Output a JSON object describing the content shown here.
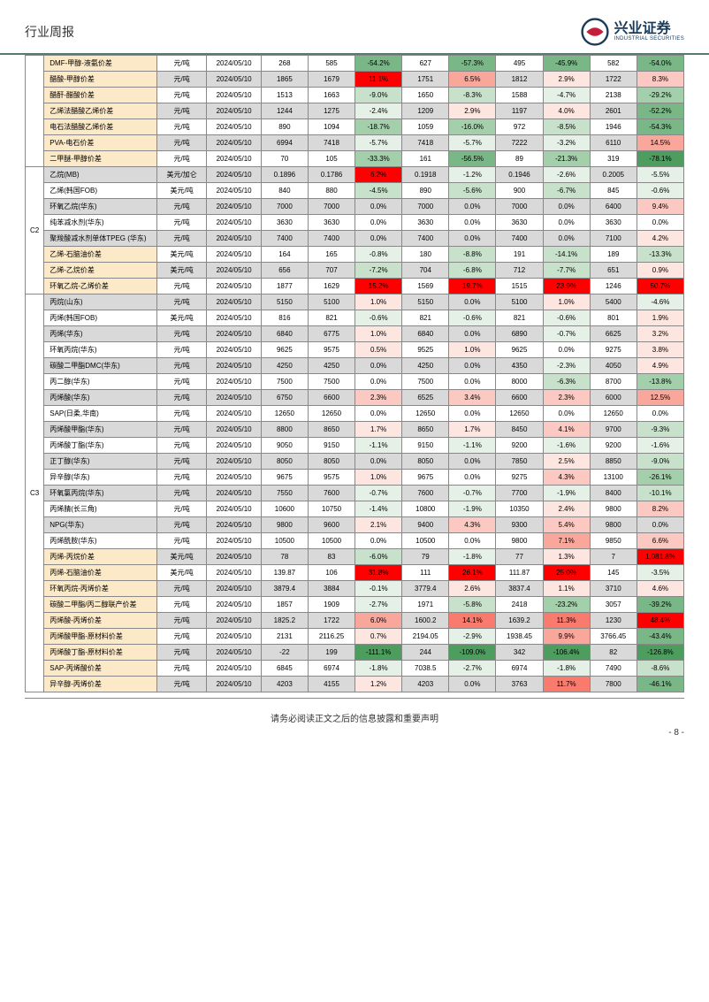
{
  "header_title": "行业周报",
  "logo": {
    "cn": "兴业证券",
    "en": "INDUSTRIAL SECURITIES"
  },
  "footer": "请务必阅读正文之后的信息披露和重要声明",
  "page": "- 8 -",
  "rot_label": "C3",
  "color_map": {
    "r5": "#ff0000",
    "r4": "#f97b6e",
    "r3": "#f9a79b",
    "r2": "#fbc9c1",
    "r1": "#fde5e0",
    "g5": "#4d9d5f",
    "g4": "#7ab787",
    "g3": "#a3cfab",
    "g2": "#c7e1cb",
    "g1": "#e5f0e7",
    "n": "transparent"
  },
  "groups": [
    {
      "rot": "",
      "rows": [
        {
          "hl": true,
          "grey": false,
          "name": "DMF-甲醇-液氨价差",
          "unit": "元/吨",
          "date": "2024/05/10",
          "v1": "268",
          "v2": "585",
          "p1": "-54.2%",
          "c1": "g4",
          "v3": "627",
          "p2": "-57.3%",
          "c2": "g4",
          "v4": "495",
          "p3": "-45.9%",
          "c3": "g4",
          "v5": "582",
          "p4": "-54.0%",
          "c4": "g4"
        },
        {
          "hl": true,
          "grey": true,
          "name": "醋酸-甲醇价差",
          "unit": "元/吨",
          "date": "2024/05/10",
          "v1": "1865",
          "v2": "1679",
          "p1": "11.1%",
          "c1": "r5",
          "v3": "1751",
          "p2": "6.5%",
          "c2": "r3",
          "v4": "1812",
          "p3": "2.9%",
          "c3": "r1",
          "v5": "1722",
          "p4": "8.3%",
          "c4": "r2"
        },
        {
          "hl": true,
          "grey": false,
          "name": "醋酐-醋酸价差",
          "unit": "元/吨",
          "date": "2024/05/10",
          "v1": "1513",
          "v2": "1663",
          "p1": "-9.0%",
          "c1": "g2",
          "v3": "1650",
          "p2": "-8.3%",
          "c2": "g2",
          "v4": "1588",
          "p3": "-4.7%",
          "c3": "g1",
          "v5": "2138",
          "p4": "-29.2%",
          "c4": "g3"
        },
        {
          "hl": true,
          "grey": true,
          "name": "乙烯法醋酸乙烯价差",
          "unit": "元/吨",
          "date": "2024/05/10",
          "v1": "1244",
          "v2": "1275",
          "p1": "-2.4%",
          "c1": "g1",
          "v3": "1209",
          "p2": "2.9%",
          "c2": "r1",
          "v4": "1197",
          "p3": "4.0%",
          "c3": "r1",
          "v5": "2601",
          "p4": "-52.2%",
          "c4": "g4"
        },
        {
          "hl": true,
          "grey": false,
          "name": "电石法醋酸乙烯价差",
          "unit": "元/吨",
          "date": "2024/05/10",
          "v1": "890",
          "v2": "1094",
          "p1": "-18.7%",
          "c1": "g3",
          "v3": "1059",
          "p2": "-16.0%",
          "c2": "g3",
          "v4": "972",
          "p3": "-8.5%",
          "c3": "g2",
          "v5": "1946",
          "p4": "-54.3%",
          "c4": "g4"
        },
        {
          "hl": true,
          "grey": true,
          "name": "PVA-电石价差",
          "unit": "元/吨",
          "date": "2024/05/10",
          "v1": "6994",
          "v2": "7418",
          "p1": "-5.7%",
          "c1": "g1",
          "v3": "7418",
          "p2": "-5.7%",
          "c2": "g1",
          "v4": "7222",
          "p3": "-3.2%",
          "c3": "g1",
          "v5": "6110",
          "p4": "14.5%",
          "c4": "r3"
        },
        {
          "hl": true,
          "grey": false,
          "name": "二甲醚-甲醇价差",
          "unit": "元/吨",
          "date": "2024/05/10",
          "v1": "70",
          "v2": "105",
          "p1": "-33.3%",
          "c1": "g3",
          "v3": "161",
          "p2": "-56.5%",
          "c2": "g4",
          "v4": "89",
          "p3": "-21.3%",
          "c3": "g3",
          "v5": "319",
          "p4": "-78.1%",
          "c4": "g5"
        }
      ]
    },
    {
      "rot": "C2",
      "rows": [
        {
          "hl": false,
          "grey": true,
          "name": "乙烷(MB)",
          "unit": "美元/加仑",
          "date": "2024/05/10",
          "v1": "0.1896",
          "v2": "0.1786",
          "p1": "6.2%",
          "c1": "r5",
          "v3": "0.1918",
          "p2": "-1.2%",
          "c2": "g1",
          "v4": "0.1946",
          "p3": "-2.6%",
          "c3": "g1",
          "v5": "0.2005",
          "p4": "-5.5%",
          "c4": "g1"
        },
        {
          "hl": false,
          "grey": false,
          "name": "乙烯(韩国FOB)",
          "unit": "美元/吨",
          "date": "2024/05/10",
          "v1": "840",
          "v2": "880",
          "p1": "-4.5%",
          "c1": "g2",
          "v3": "890",
          "p2": "-5.6%",
          "c2": "g2",
          "v4": "900",
          "p3": "-6.7%",
          "c3": "g2",
          "v5": "845",
          "p4": "-0.6%",
          "c4": "g1"
        },
        {
          "hl": false,
          "grey": true,
          "name": "环氧乙烷(华东)",
          "unit": "元/吨",
          "date": "2024/05/10",
          "v1": "7000",
          "v2": "7000",
          "p1": "0.0%",
          "c1": "n",
          "v3": "7000",
          "p2": "0.0%",
          "c2": "n",
          "v4": "7000",
          "p3": "0.0%",
          "c3": "n",
          "v5": "6400",
          "p4": "9.4%",
          "c4": "r2"
        },
        {
          "hl": false,
          "grey": false,
          "name": "纯苯减水剂(华东)",
          "unit": "元/吨",
          "date": "2024/05/10",
          "v1": "3630",
          "v2": "3630",
          "p1": "0.0%",
          "c1": "n",
          "v3": "3630",
          "p2": "0.0%",
          "c2": "n",
          "v4": "3630",
          "p3": "0.0%",
          "c3": "n",
          "v5": "3630",
          "p4": "0.0%",
          "c4": "n"
        },
        {
          "hl": false,
          "grey": true,
          "name": "聚羧酸减水剂单体TPEG (华东)",
          "unit": "元/吨",
          "date": "2024/05/10",
          "v1": "7400",
          "v2": "7400",
          "p1": "0.0%",
          "c1": "n",
          "v3": "7400",
          "p2": "0.0%",
          "c2": "n",
          "v4": "7400",
          "p3": "0.0%",
          "c3": "n",
          "v5": "7100",
          "p4": "4.2%",
          "c4": "r1"
        },
        {
          "hl": true,
          "grey": false,
          "name": "乙烯-石脑油价差",
          "unit": "美元/吨",
          "date": "2024/05/10",
          "v1": "164",
          "v2": "165",
          "p1": "-0.8%",
          "c1": "g1",
          "v3": "180",
          "p2": "-8.8%",
          "c2": "g2",
          "v4": "191",
          "p3": "-14.1%",
          "c3": "g2",
          "v5": "189",
          "p4": "-13.3%",
          "c4": "g2"
        },
        {
          "hl": true,
          "grey": true,
          "name": "乙烯-乙烷价差",
          "unit": "美元/吨",
          "date": "2024/05/10",
          "v1": "656",
          "v2": "707",
          "p1": "-7.2%",
          "c1": "g2",
          "v3": "704",
          "p2": "-6.8%",
          "c2": "g2",
          "v4": "712",
          "p3": "-7.7%",
          "c3": "g2",
          "v5": "651",
          "p4": "0.9%",
          "c4": "r1"
        },
        {
          "hl": true,
          "grey": false,
          "name": "环氧乙烷-乙烯价差",
          "unit": "元/吨",
          "date": "2024/05/10",
          "v1": "1877",
          "v2": "1629",
          "p1": "15.2%",
          "c1": "r5",
          "v3": "1569",
          "p2": "19.7%",
          "c2": "r5",
          "v4": "1515",
          "p3": "23.9%",
          "c3": "r5",
          "v5": "1246",
          "p4": "50.7%",
          "c4": "r5"
        }
      ]
    },
    {
      "rot": "C3",
      "rows": [
        {
          "hl": false,
          "grey": true,
          "name": "丙烷(山东)",
          "unit": "元/吨",
          "date": "2024/05/10",
          "v1": "5150",
          "v2": "5100",
          "p1": "1.0%",
          "c1": "r1",
          "v3": "5150",
          "p2": "0.0%",
          "c2": "n",
          "v4": "5100",
          "p3": "1.0%",
          "c3": "r1",
          "v5": "5400",
          "p4": "-4.6%",
          "c4": "g1"
        },
        {
          "hl": false,
          "grey": false,
          "name": "丙烯(韩国FOB)",
          "unit": "美元/吨",
          "date": "2024/05/10",
          "v1": "816",
          "v2": "821",
          "p1": "-0.6%",
          "c1": "g1",
          "v3": "821",
          "p2": "-0.6%",
          "c2": "g1",
          "v4": "821",
          "p3": "-0.6%",
          "c3": "g1",
          "v5": "801",
          "p4": "1.9%",
          "c4": "r1"
        },
        {
          "hl": false,
          "grey": true,
          "name": "丙烯(华东)",
          "unit": "元/吨",
          "date": "2024/05/10",
          "v1": "6840",
          "v2": "6775",
          "p1": "1.0%",
          "c1": "r1",
          "v3": "6840",
          "p2": "0.0%",
          "c2": "n",
          "v4": "6890",
          "p3": "-0.7%",
          "c3": "g1",
          "v5": "6625",
          "p4": "3.2%",
          "c4": "r1"
        },
        {
          "hl": false,
          "grey": false,
          "name": "环氧丙烷(华东)",
          "unit": "元/吨",
          "date": "2024/05/10",
          "v1": "9625",
          "v2": "9575",
          "p1": "0.5%",
          "c1": "r1",
          "v3": "9525",
          "p2": "1.0%",
          "c2": "r1",
          "v4": "9625",
          "p3": "0.0%",
          "c3": "n",
          "v5": "9275",
          "p4": "3.8%",
          "c4": "r1"
        },
        {
          "hl": false,
          "grey": true,
          "name": "碳酸二甲酯DMC(华东)",
          "unit": "元/吨",
          "date": "2024/05/10",
          "v1": "4250",
          "v2": "4250",
          "p1": "0.0%",
          "c1": "n",
          "v3": "4250",
          "p2": "0.0%",
          "c2": "n",
          "v4": "4350",
          "p3": "-2.3%",
          "c3": "g1",
          "v5": "4050",
          "p4": "4.9%",
          "c4": "r1"
        },
        {
          "hl": false,
          "grey": false,
          "name": "丙二醇(华东)",
          "unit": "元/吨",
          "date": "2024/05/10",
          "v1": "7500",
          "v2": "7500",
          "p1": "0.0%",
          "c1": "n",
          "v3": "7500",
          "p2": "0.0%",
          "c2": "n",
          "v4": "8000",
          "p3": "-6.3%",
          "c3": "g2",
          "v5": "8700",
          "p4": "-13.8%",
          "c4": "g3"
        },
        {
          "hl": false,
          "grey": true,
          "name": "丙烯酸(华东)",
          "unit": "元/吨",
          "date": "2024/05/10",
          "v1": "6750",
          "v2": "6600",
          "p1": "2.3%",
          "c1": "r2",
          "v3": "6525",
          "p2": "3.4%",
          "c2": "r2",
          "v4": "6600",
          "p3": "2.3%",
          "c3": "r2",
          "v5": "6000",
          "p4": "12.5%",
          "c4": "r3"
        },
        {
          "hl": false,
          "grey": false,
          "name": "SAP(日柔,华南)",
          "unit": "元/吨",
          "date": "2024/05/10",
          "v1": "12650",
          "v2": "12650",
          "p1": "0.0%",
          "c1": "n",
          "v3": "12650",
          "p2": "0.0%",
          "c2": "n",
          "v4": "12650",
          "p3": "0.0%",
          "c3": "n",
          "v5": "12650",
          "p4": "0.0%",
          "c4": "n"
        },
        {
          "hl": false,
          "grey": true,
          "name": "丙烯酸甲酯(华东)",
          "unit": "元/吨",
          "date": "2024/05/10",
          "v1": "8800",
          "v2": "8650",
          "p1": "1.7%",
          "c1": "r1",
          "v3": "8650",
          "p2": "1.7%",
          "c2": "r1",
          "v4": "8450",
          "p3": "4.1%",
          "c3": "r2",
          "v5": "9700",
          "p4": "-9.3%",
          "c4": "g2"
        },
        {
          "hl": false,
          "grey": false,
          "name": "丙烯酸丁酯(华东)",
          "unit": "元/吨",
          "date": "2024/05/10",
          "v1": "9050",
          "v2": "9150",
          "p1": "-1.1%",
          "c1": "g1",
          "v3": "9150",
          "p2": "-1.1%",
          "c2": "g1",
          "v4": "9200",
          "p3": "-1.6%",
          "c3": "g1",
          "v5": "9200",
          "p4": "-1.6%",
          "c4": "g1"
        },
        {
          "hl": false,
          "grey": true,
          "name": "正丁醇(华东)",
          "unit": "元/吨",
          "date": "2024/05/10",
          "v1": "8050",
          "v2": "8050",
          "p1": "0.0%",
          "c1": "n",
          "v3": "8050",
          "p2": "0.0%",
          "c2": "n",
          "v4": "7850",
          "p3": "2.5%",
          "c3": "r1",
          "v5": "8850",
          "p4": "-9.0%",
          "c4": "g2"
        },
        {
          "hl": false,
          "grey": false,
          "name": "异辛醇(华东)",
          "unit": "元/吨",
          "date": "2024/05/10",
          "v1": "9675",
          "v2": "9575",
          "p1": "1.0%",
          "c1": "r1",
          "v3": "9675",
          "p2": "0.0%",
          "c2": "n",
          "v4": "9275",
          "p3": "4.3%",
          "c3": "r2",
          "v5": "13100",
          "p4": "-26.1%",
          "c4": "g3"
        },
        {
          "hl": false,
          "grey": true,
          "name": "环氧氯丙烷(华东)",
          "unit": "元/吨",
          "date": "2024/05/10",
          "v1": "7550",
          "v2": "7600",
          "p1": "-0.7%",
          "c1": "g1",
          "v3": "7600",
          "p2": "-0.7%",
          "c2": "g1",
          "v4": "7700",
          "p3": "-1.9%",
          "c3": "g1",
          "v5": "8400",
          "p4": "-10.1%",
          "c4": "g2"
        },
        {
          "hl": false,
          "grey": false,
          "name": "丙烯腈(长三角)",
          "unit": "元/吨",
          "date": "2024/05/10",
          "v1": "10600",
          "v2": "10750",
          "p1": "-1.4%",
          "c1": "g1",
          "v3": "10800",
          "p2": "-1.9%",
          "c2": "g1",
          "v4": "10350",
          "p3": "2.4%",
          "c3": "r1",
          "v5": "9800",
          "p4": "8.2%",
          "c4": "r2"
        },
        {
          "hl": false,
          "grey": true,
          "name": "NPG(华东)",
          "unit": "元/吨",
          "date": "2024/05/10",
          "v1": "9800",
          "v2": "9600",
          "p1": "2.1%",
          "c1": "r1",
          "v3": "9400",
          "p2": "4.3%",
          "c2": "r2",
          "v4": "9300",
          "p3": "5.4%",
          "c3": "r2",
          "v5": "9800",
          "p4": "0.0%",
          "c4": "n"
        },
        {
          "hl": false,
          "grey": false,
          "name": "丙烯酰胺(华东)",
          "unit": "元/吨",
          "date": "2024/05/10",
          "v1": "10500",
          "v2": "10500",
          "p1": "0.0%",
          "c1": "n",
          "v3": "10500",
          "p2": "0.0%",
          "c2": "n",
          "v4": "9800",
          "p3": "7.1%",
          "c3": "r3",
          "v5": "9850",
          "p4": "6.6%",
          "c4": "r2"
        },
        {
          "hl": true,
          "grey": true,
          "name": "丙烯-丙烷价差",
          "unit": "美元/吨",
          "date": "2024/05/10",
          "v1": "78",
          "v2": "83",
          "p1": "-6.0%",
          "c1": "g2",
          "v3": "79",
          "p2": "-1.8%",
          "c2": "g1",
          "v4": "77",
          "p3": "1.3%",
          "c3": "r1",
          "v5": "7",
          "p4": "1,081.8%",
          "c4": "r5"
        },
        {
          "hl": true,
          "grey": false,
          "name": "丙烯-石脑油价差",
          "unit": "美元/吨",
          "date": "2024/05/10",
          "v1": "139.87",
          "v2": "106",
          "p1": "31.8%",
          "c1": "r5",
          "v3": "111",
          "p2": "26.1%",
          "c2": "r5",
          "v4": "111.87",
          "p3": "25.0%",
          "c3": "r5",
          "v5": "145",
          "p4": "-3.5%",
          "c4": "g1"
        },
        {
          "hl": true,
          "grey": true,
          "name": "环氧丙烷-丙烯价差",
          "unit": "元/吨",
          "date": "2024/05/10",
          "v1": "3879.4",
          "v2": "3884",
          "p1": "-0.1%",
          "c1": "g1",
          "v3": "3779.4",
          "p2": "2.6%",
          "c2": "r1",
          "v4": "3837.4",
          "p3": "1.1%",
          "c3": "r1",
          "v5": "3710",
          "p4": "4.6%",
          "c4": "r1"
        },
        {
          "hl": true,
          "grey": false,
          "name": "碳酸二甲酯/丙二醇联产价差",
          "unit": "元/吨",
          "date": "2024/05/10",
          "v1": "1857",
          "v2": "1909",
          "p1": "-2.7%",
          "c1": "g1",
          "v3": "1971",
          "p2": "-5.8%",
          "c2": "g2",
          "v4": "2418",
          "p3": "-23.2%",
          "c3": "g3",
          "v5": "3057",
          "p4": "-39.2%",
          "c4": "g4"
        },
        {
          "hl": true,
          "grey": true,
          "name": "丙烯酸-丙烯价差",
          "unit": "元/吨",
          "date": "2024/05/10",
          "v1": "1825.2",
          "v2": "1722",
          "p1": "6.0%",
          "c1": "r3",
          "v3": "1600.2",
          "p2": "14.1%",
          "c2": "r4",
          "v4": "1639.2",
          "p3": "11.3%",
          "c3": "r4",
          "v5": "1230",
          "p4": "48.4%",
          "c4": "r5"
        },
        {
          "hl": true,
          "grey": false,
          "name": "丙烯酸甲酯-原材料价差",
          "unit": "元/吨",
          "date": "2024/05/10",
          "v1": "2131",
          "v2": "2116.25",
          "p1": "0.7%",
          "c1": "r1",
          "v3": "2194.05",
          "p2": "-2.9%",
          "c2": "g1",
          "v4": "1938.45",
          "p3": "9.9%",
          "c3": "r3",
          "v5": "3766.45",
          "p4": "-43.4%",
          "c4": "g4"
        },
        {
          "hl": true,
          "grey": true,
          "name": "丙烯酸丁酯-原材料价差",
          "unit": "元/吨",
          "date": "2024/05/10",
          "v1": "-22",
          "v2": "199",
          "p1": "-111.1%",
          "c1": "g5",
          "v3": "244",
          "p2": "-109.0%",
          "c2": "g5",
          "v4": "342",
          "p3": "-106.4%",
          "c3": "g5",
          "v5": "82",
          "p4": "-126.8%",
          "c4": "g5"
        },
        {
          "hl": true,
          "grey": false,
          "name": "SAP-丙烯酸价差",
          "unit": "元/吨",
          "date": "2024/05/10",
          "v1": "6845",
          "v2": "6974",
          "p1": "-1.8%",
          "c1": "g1",
          "v3": "7038.5",
          "p2": "-2.7%",
          "c2": "g1",
          "v4": "6974",
          "p3": "-1.8%",
          "c3": "g1",
          "v5": "7490",
          "p4": "-8.6%",
          "c4": "g2"
        },
        {
          "hl": true,
          "grey": true,
          "name": "异辛醇-丙烯价差",
          "unit": "元/吨",
          "date": "2024/05/10",
          "v1": "4203",
          "v2": "4155",
          "p1": "1.2%",
          "c1": "r1",
          "v3": "4203",
          "p2": "0.0%",
          "c2": "n",
          "v4": "3763",
          "p3": "11.7%",
          "c3": "r4",
          "v5": "7800",
          "p4": "-46.1%",
          "c4": "g4"
        }
      ]
    }
  ]
}
